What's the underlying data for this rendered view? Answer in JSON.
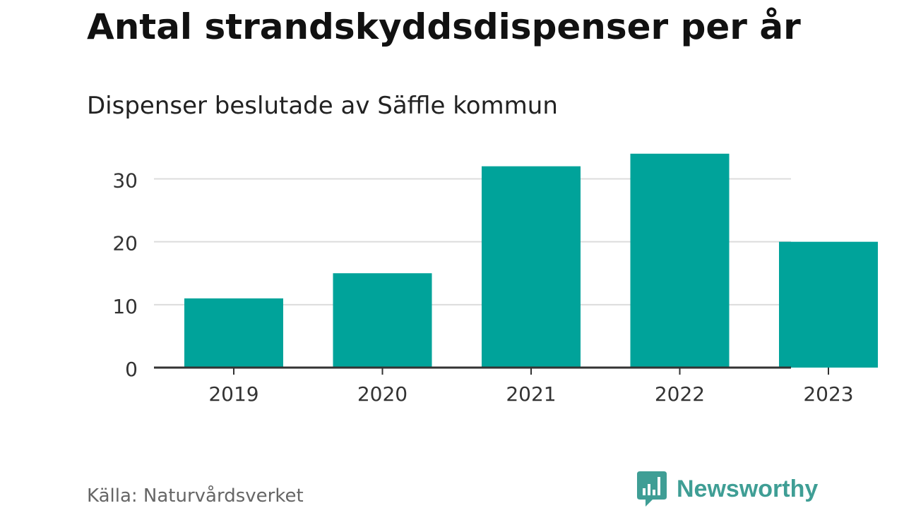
{
  "chart_data": {
    "type": "bar",
    "title": "Antal strandskyddsdispenser per år",
    "subtitle": "Dispenser beslutade av Säffle kommun",
    "xlabel": "",
    "ylabel": "",
    "categories": [
      "2019",
      "2020",
      "2021",
      "2022",
      "2023"
    ],
    "values": [
      11,
      15,
      32,
      34,
      20
    ],
    "ylim": [
      0,
      36
    ],
    "yticks": [
      0,
      10,
      20,
      30
    ],
    "grid": true,
    "bar_color": "#00a39a"
  },
  "footer": {
    "source": "Källa: Naturvårdsverket",
    "brand": "Newsworthy",
    "brand_color": "#3f9e95"
  }
}
